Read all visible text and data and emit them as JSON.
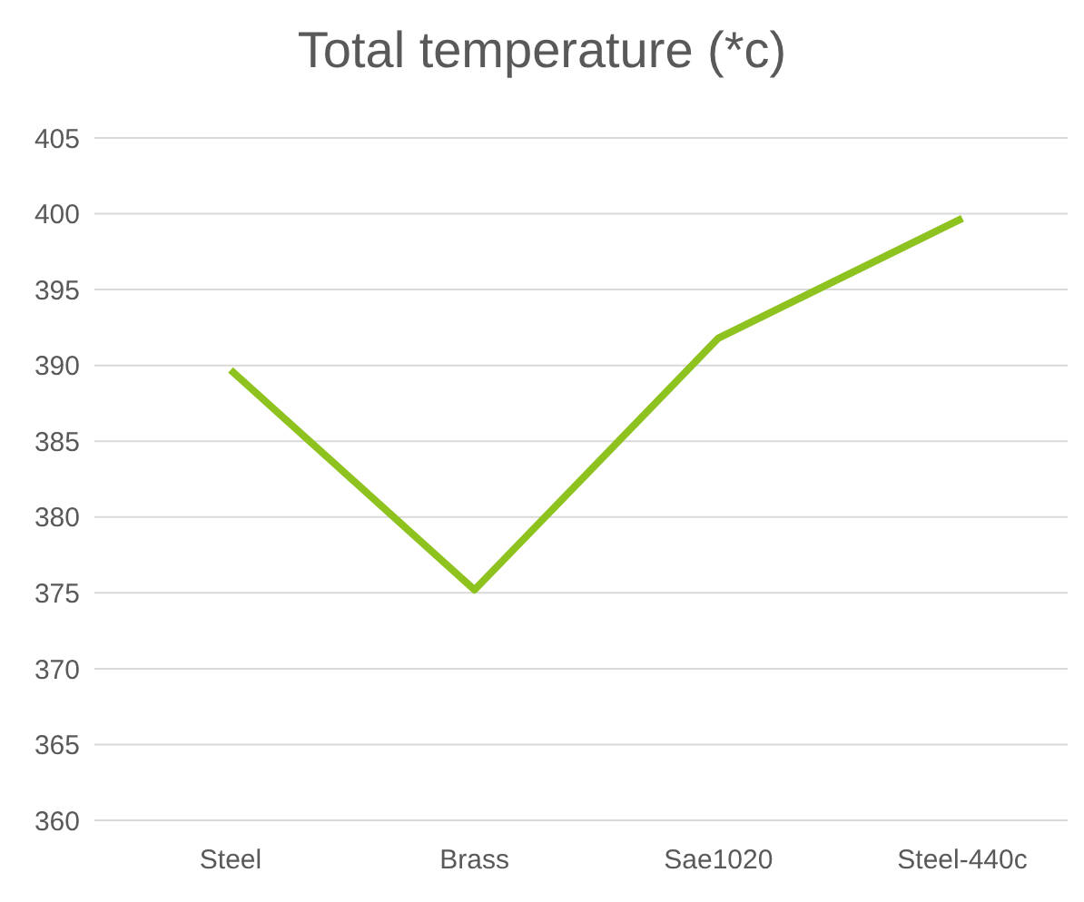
{
  "chart_data": {
    "type": "line",
    "title": "Total temperature (*c)",
    "categories": [
      "Steel",
      "Brass",
      "Sae1020",
      "Steel-440c"
    ],
    "series": [
      {
        "color": "#8dc21f",
        "values": [
          389.7,
          375.2,
          391.8,
          399.7
        ]
      }
    ],
    "ylim": [
      360,
      405
    ],
    "yticks": [
      360,
      365,
      370,
      375,
      380,
      385,
      390,
      395,
      400,
      405
    ],
    "grid": "y",
    "legend": false,
    "marker": "none",
    "line_style": "solid"
  }
}
